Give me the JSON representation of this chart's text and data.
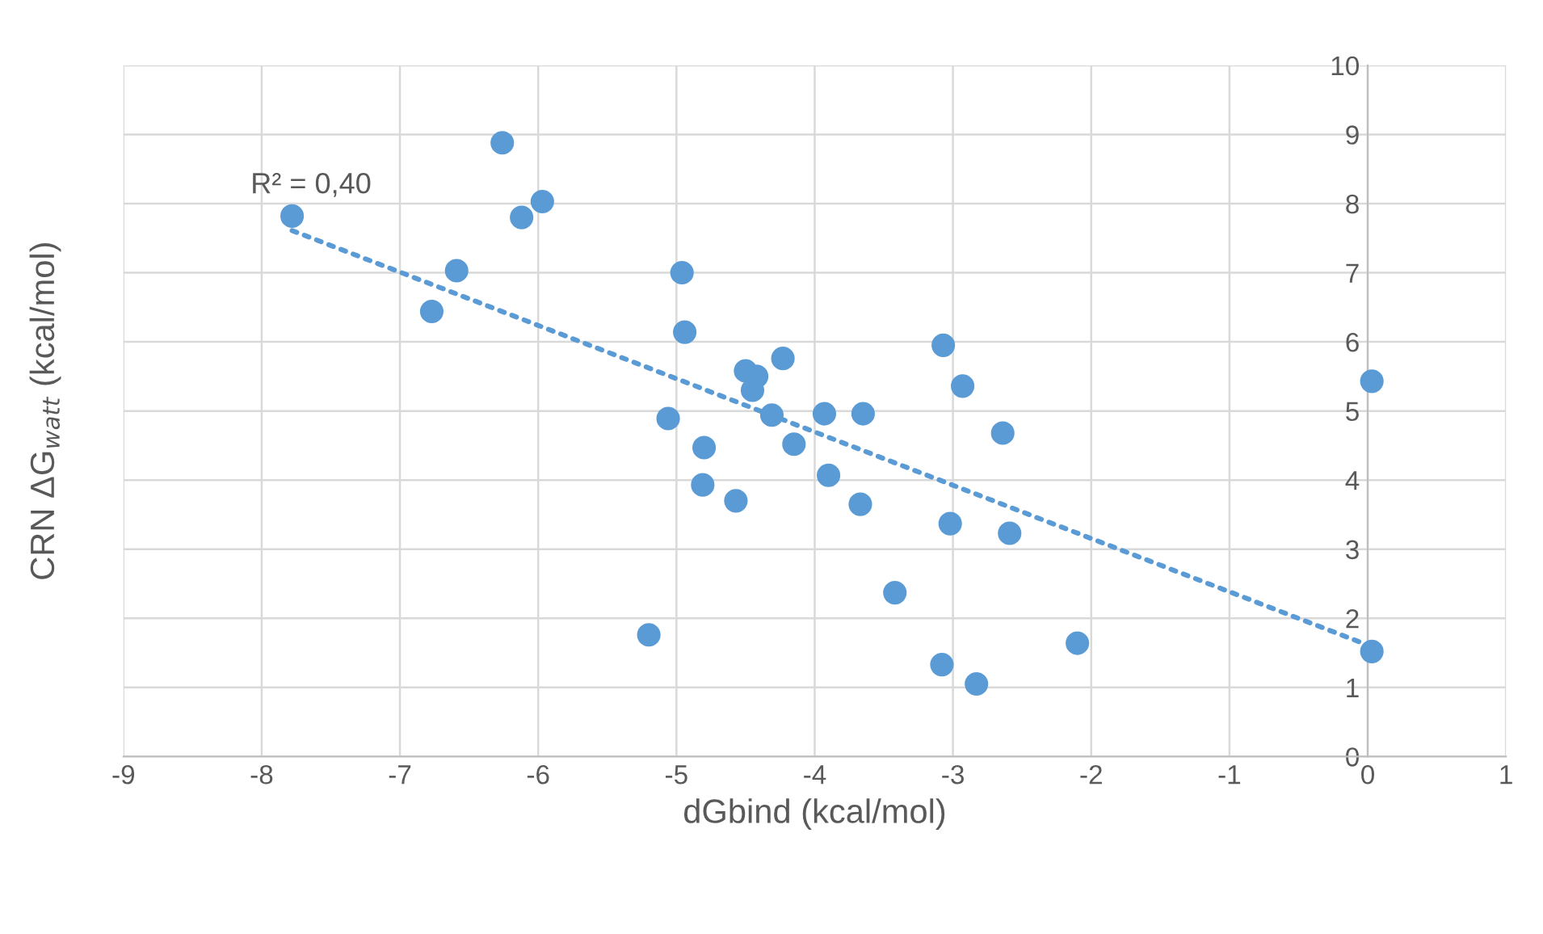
{
  "chart_data": {
    "type": "scatter",
    "xlabel": "dGbind (kcal/mol)",
    "ylabel": "CRN ΔG$_{watt}$ (kcal/mol)",
    "xlim": [
      -9,
      1
    ],
    "xticks": [
      -9,
      -8,
      -7,
      -6,
      -5,
      -4,
      -3,
      -2,
      -1,
      0,
      1
    ],
    "ylim": [
      0,
      10
    ],
    "yticks": [
      0,
      1,
      2,
      3,
      4,
      5,
      6,
      7,
      8,
      9,
      10
    ],
    "grid": true,
    "annotations": [
      "R² = 0,40"
    ],
    "series": [
      {
        "color": "#5b9bd5",
        "marker": "circle",
        "x": [
          -7.78,
          -6.26,
          -5.97,
          -6.12,
          -6.59,
          -6.77,
          -4.96,
          -4.94,
          -5.06,
          -4.8,
          -4.81,
          -4.57,
          -5.2,
          -4.5,
          -4.42,
          -4.45,
          -4.23,
          -4.31,
          -4.15,
          -3.93,
          -3.65,
          -3.9,
          -3.67,
          -3.42,
          -3.07,
          -2.93,
          -3.02,
          -3.08,
          -2.83,
          -2.59,
          -2.64,
          -2.1,
          0.03,
          0.03
        ],
        "values": [
          7.82,
          8.88,
          8.03,
          7.8,
          7.03,
          6.44,
          7.0,
          6.14,
          4.89,
          4.47,
          3.93,
          3.7,
          1.76,
          5.58,
          5.5,
          5.3,
          5.76,
          4.94,
          4.52,
          4.96,
          4.96,
          4.07,
          3.65,
          2.37,
          5.95,
          5.36,
          3.37,
          1.33,
          1.05,
          3.23,
          4.68,
          1.64,
          5.43,
          1.52
        ]
      },
      {
        "type": "line",
        "color": "#5b9bd5",
        "line_style": "dotted",
        "marker": "none",
        "x": [
          -7.78,
          0.03
        ],
        "values": [
          7.61,
          1.59
        ]
      }
    ]
  }
}
